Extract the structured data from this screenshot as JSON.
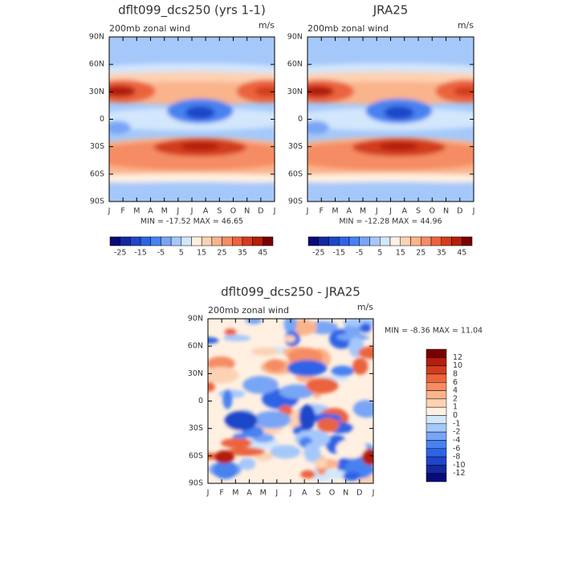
{
  "panels": [
    {
      "title": "dflt099_dcs250 (yrs 1-1)",
      "left_label": "200mb zonal wind",
      "right_label": "m/s",
      "stats": "MIN = -17.52 MAX =  46.65"
    },
    {
      "title": "JRA25",
      "left_label": "200mb zonal wind",
      "right_label": "m/s",
      "stats": "MIN = -12.28 MAX =  44.96"
    },
    {
      "title": "dflt099_dcs250 - JRA25",
      "left_label": "200mb zonal wind",
      "right_label": "m/s",
      "stats": "MIN =  -8.36 MAX =  11.04"
    }
  ],
  "y_axis_labels": [
    "90N",
    "60N",
    "30N",
    "0",
    "30S",
    "60S",
    "90S"
  ],
  "x_axis_labels": [
    "J",
    "F",
    "M",
    "A",
    "M",
    "J",
    "J",
    "A",
    "S",
    "O",
    "N",
    "D",
    "J"
  ],
  "colorbar_top": {
    "labels": [
      "-25",
      "-15",
      "-5",
      "5",
      "15",
      "25",
      "35",
      "45"
    ],
    "colors": [
      "#0a0a78",
      "#1428a0",
      "#1e46c8",
      "#2d64e6",
      "#4682f0",
      "#78a5f5",
      "#a5c8fa",
      "#d2e6fc",
      "#fff0e1",
      "#fcd2b4",
      "#fab48c",
      "#f58c64",
      "#eb643c",
      "#d23c1e",
      "#b41e0a",
      "#780000"
    ]
  },
  "colorbar_diff": {
    "labels": [
      "12",
      "10",
      "8",
      "6",
      "4",
      "2",
      "1",
      "0",
      "-1",
      "-2",
      "-4",
      "-6",
      "-8",
      "-10",
      "-12"
    ],
    "colors": [
      "#780000",
      "#b41e0a",
      "#d23c1e",
      "#eb643c",
      "#f58c64",
      "#fab48c",
      "#fcd2b4",
      "#fff0e1",
      "#d2e6fc",
      "#a5c8fa",
      "#78a5f5",
      "#4682f0",
      "#2d64e6",
      "#1e46c8",
      "#1428a0",
      "#0a0a78"
    ]
  }
}
